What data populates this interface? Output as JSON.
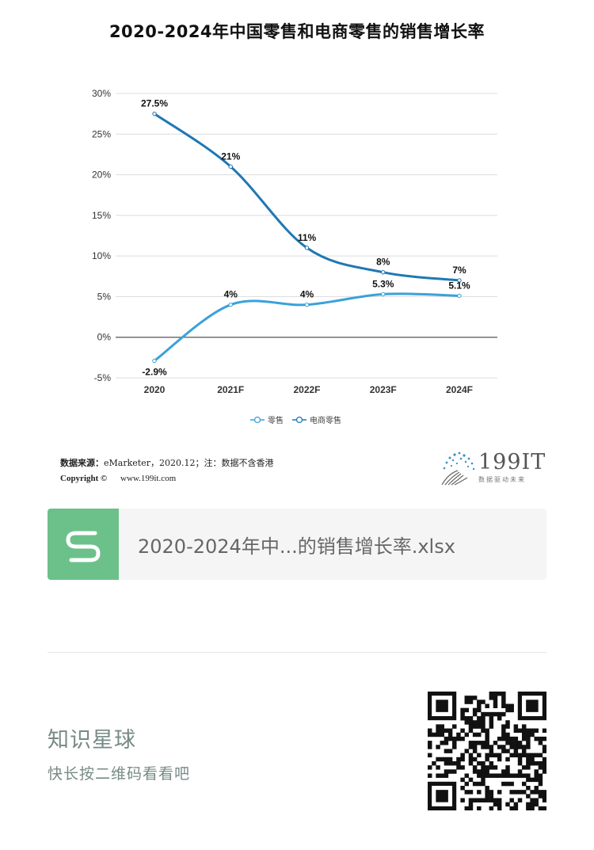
{
  "chart_data": {
    "type": "line",
    "title": "2020-2024年中国零售和电商零售的销售增长率",
    "categories": [
      "2020",
      "2021F",
      "2022F",
      "2023F",
      "2024F"
    ],
    "yticks": [
      "30%",
      "25%",
      "20%",
      "15%",
      "10%",
      "5%",
      "0%",
      "-5%"
    ],
    "ylim": [
      -5,
      30
    ],
    "grid": true,
    "legend_position": "bottom",
    "series": [
      {
        "name": "零售",
        "values": [
          -2.9,
          4,
          4,
          5.3,
          5.1
        ],
        "labels": [
          "-2.9%",
          "4%",
          "4%",
          "5.3%",
          "5.1%"
        ],
        "color": "#3aa1d9"
      },
      {
        "name": "电商零售",
        "values": [
          27.5,
          21,
          11,
          8,
          7
        ],
        "labels": [
          "27.5%",
          "21%",
          "11%",
          "8%",
          "7%"
        ],
        "color": "#1f78b4"
      }
    ]
  },
  "source": {
    "label": "数据来源：",
    "text": "eMarketer，2020.12；注：数据不含香港"
  },
  "copyright": {
    "label": "Copyright ©",
    "site": "www.199it.com"
  },
  "logo": {
    "name": "199IT",
    "slogan": "数据驱动未来",
    "icon": "dandelion-dots-icon"
  },
  "file": {
    "icon": "wps-spreadsheet-icon",
    "name": "2020-2024年中...的销售增长率.xlsx",
    "icon_color": "#6cc18a"
  },
  "planet": {
    "title": "知识星球",
    "subtitle": "快长按二维码看看吧",
    "qr_icon": "qr-code-icon"
  }
}
